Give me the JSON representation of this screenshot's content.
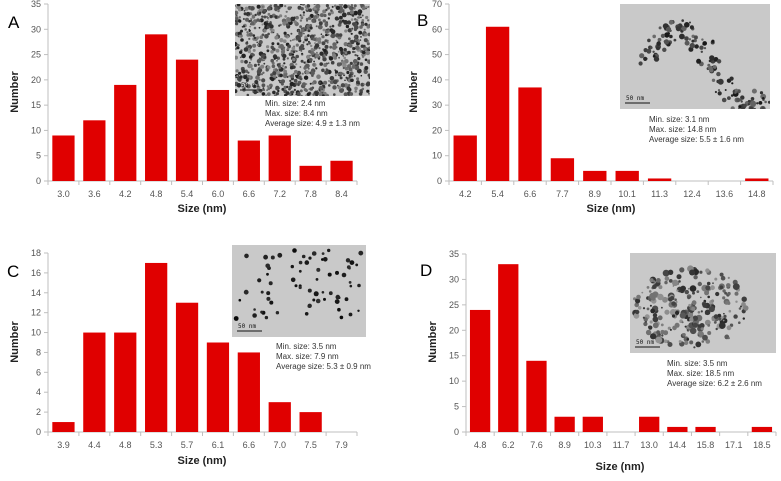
{
  "colors": {
    "bar": "#e00000",
    "axis": "#bfbfbf",
    "text": "#555555"
  },
  "chart_data": [
    {
      "type": "bar",
      "panel": "A",
      "categories": [
        "3.0",
        "3.6",
        "4.2",
        "4.8",
        "5.4",
        "6.0",
        "6.6",
        "7.2",
        "7.8",
        "8.4"
      ],
      "values": [
        9,
        12,
        19,
        29,
        24,
        18,
        8,
        9,
        3,
        4
      ],
      "xlabel": "Size (nm)",
      "ylabel": "Number",
      "ylim": [
        0,
        35
      ],
      "ystep": 5,
      "inset": {
        "scale_bar": "50 nm",
        "style": "dense"
      },
      "stats": [
        "Min. size: 2.4 nm",
        "Max. size: 8.4 nm",
        "Average size: 4.9 ± 1.3 nm"
      ]
    },
    {
      "type": "bar",
      "panel": "B",
      "categories": [
        "4.2",
        "5.4",
        "6.6",
        "7.7",
        "8.9",
        "10.1",
        "11.3",
        "12.4",
        "13.6",
        "14.8"
      ],
      "values": [
        18,
        61,
        37,
        9,
        4,
        4,
        1,
        0,
        0,
        1
      ],
      "xlabel": "Size (nm)",
      "ylabel": "Number",
      "ylim": [
        0,
        70
      ],
      "ystep": 10,
      "inset": {
        "scale_bar": "50 nm",
        "style": "chain"
      },
      "stats": [
        "Min. size: 3.1 nm",
        "Max. size: 14.8 nm",
        "Average size: 5.5 ± 1.6 nm"
      ]
    },
    {
      "type": "bar",
      "panel": "C",
      "categories": [
        "3.9",
        "4.4",
        "4.8",
        "5.3",
        "5.7",
        "6.1",
        "6.6",
        "7.0",
        "7.5",
        "7.9"
      ],
      "values": [
        1,
        10,
        10,
        17,
        13,
        9,
        8,
        3,
        2,
        0
      ],
      "xlabel": "Size (nm)",
      "ylabel": "Number",
      "ylim": [
        0,
        18
      ],
      "ystep": 2,
      "inset": {
        "scale_bar": "50 nm",
        "style": "sparse"
      },
      "stats": [
        "Min. size: 3.5 nm",
        "Max. size: 7.9 nm",
        "Average size: 5.3 ± 0.9 nm"
      ]
    },
    {
      "type": "bar",
      "panel": "D",
      "categories": [
        "4.8",
        "6.2",
        "7.6",
        "8.9",
        "10.3",
        "11.7",
        "13.0",
        "14.4",
        "15.8",
        "17.1",
        "18.5"
      ],
      "values": [
        24,
        33,
        14,
        3,
        3,
        0,
        3,
        1,
        1,
        0,
        1
      ],
      "xlabel": "Size (nm)",
      "ylabel": "Number",
      "ylim": [
        0,
        35
      ],
      "ystep": 5,
      "inset": {
        "scale_bar": "50 nm",
        "style": "cluster"
      },
      "stats": [
        "Min. size: 3.5 nm",
        "Max. size: 18.5 nm",
        "Average size: 6.2 ± 2.6 nm"
      ]
    }
  ]
}
